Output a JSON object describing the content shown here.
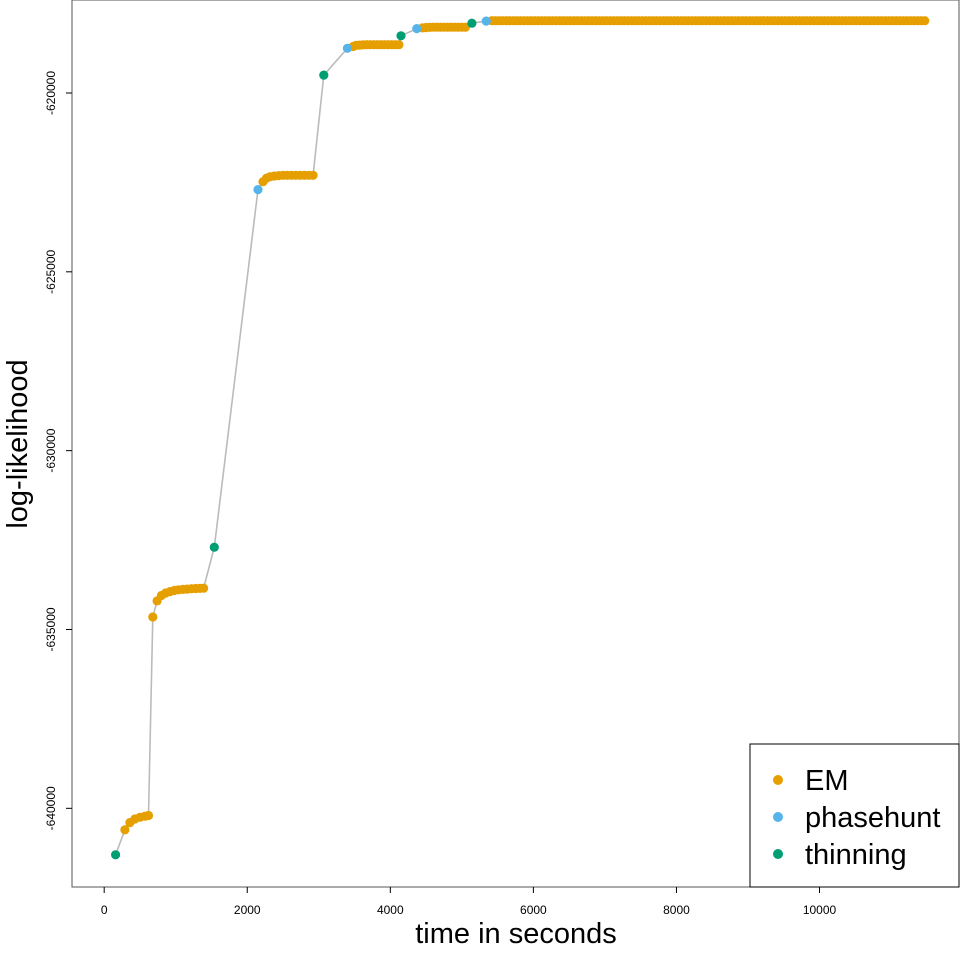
{
  "chart_data": {
    "type": "scatter",
    "title": "",
    "xlabel": "time in seconds",
    "ylabel": "log-likelihood",
    "xlim": [
      -450,
      11950
    ],
    "ylim": [
      -642200,
      -617400
    ],
    "x_ticks": [
      0,
      2000,
      4000,
      6000,
      8000,
      10000
    ],
    "x_tick_labels": [
      "0",
      "2000",
      "4000",
      "6000",
      "8000",
      "10000"
    ],
    "y_ticks": [
      -640000,
      -635000,
      -630000,
      -625000,
      -620000
    ],
    "y_tick_labels": [
      "-640000",
      "-635000",
      "-630000",
      "-625000",
      "-620000"
    ],
    "grid": false,
    "legend_position": "bottom-right",
    "line_color": "#bbbbbb",
    "series": [
      {
        "name": "EM",
        "color": "#E69F00",
        "segments": [
          {
            "x": [
              290,
              360,
              430,
              500,
              570,
              620
            ],
            "y": [
              -640600,
              -640400,
              -640300,
              -640250,
              -640220,
              -640200
            ]
          },
          {
            "x": [
              680,
              740,
              800,
              860,
              920,
              980,
              1040,
              1100,
              1160,
              1220,
              1280,
              1340,
              1390
            ],
            "y": [
              -634650,
              -634200,
              -634050,
              -633980,
              -633940,
              -633910,
              -633890,
              -633880,
              -633870,
              -633860,
              -633855,
              -633850,
              -633845
            ]
          },
          {
            "x": [
              2220,
              2270,
              2320,
              2380,
              2440,
              2500,
              2560,
              2620,
              2680,
              2740,
              2800,
              2860,
              2920
            ],
            "y": [
              -622480,
              -622380,
              -622340,
              -622320,
              -622310,
              -622300,
              -622300,
              -622300,
              -622300,
              -622300,
              -622300,
              -622300,
              -622300
            ]
          },
          {
            "x": [
              3480,
              3520,
              3570,
              3620,
              3670,
              3720,
              3770,
              3820,
              3870,
              3920,
              3970,
              4020,
              4070,
              4120
            ],
            "y": [
              -618700,
              -618670,
              -618660,
              -618655,
              -618650,
              -618650,
              -618650,
              -618650,
              -618650,
              -618650,
              -618650,
              -618650,
              -618650,
              -618650
            ]
          },
          {
            "x": [
              4450,
              4500,
              4550,
              4600,
              4650,
              4700,
              4750,
              4800,
              4850,
              4900,
              4950,
              5000,
              5050
            ],
            "y": [
              -618180,
              -618170,
              -618165,
              -618160,
              -618160,
              -618160,
              -618160,
              -618160,
              -618160,
              -618160,
              -618160,
              -618160,
              -618160
            ]
          },
          {
            "x_start": 5420,
            "x_end": 11500,
            "x_step": 50,
            "y": -617980
          }
        ]
      },
      {
        "name": "phasehunt",
        "color": "#56B4E9",
        "points": {
          "x": [
            2150,
            3400,
            4370,
            5340
          ],
          "y": [
            -622700,
            -618750,
            -618200,
            -617990
          ]
        }
      },
      {
        "name": "thinning",
        "color": "#009E73",
        "points": {
          "x": [
            160,
            1540,
            3070,
            4150,
            5140
          ],
          "y": [
            -641300,
            -632700,
            -619500,
            -618400,
            -618050
          ]
        }
      }
    ]
  }
}
